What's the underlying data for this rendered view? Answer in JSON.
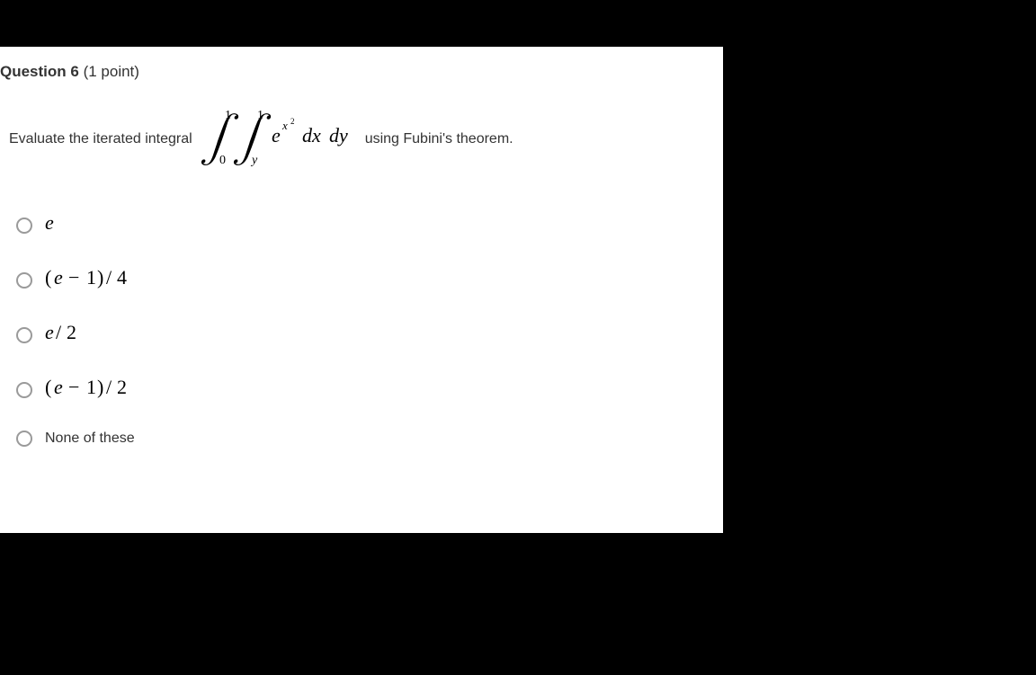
{
  "colors": {
    "page_bg": "#000000",
    "card_bg": "#ffffff",
    "text": "#333333",
    "radio_border": "#9a9a9a"
  },
  "question": {
    "label_bold": "Question 6",
    "points_suffix": " (1 point)",
    "prompt_lead": "Evaluate the iterated integral ",
    "prompt_trail": " using Fubini's theorem.",
    "integral": {
      "outer_lower": "0",
      "outer_upper": "1",
      "inner_lower": "y",
      "inner_upper": "1",
      "integrand_base": "e",
      "integrand_exp_base": "x",
      "integrand_exp_power": "2",
      "diff1": "dx",
      "diff2": "dy"
    }
  },
  "options": [
    {
      "kind": "math",
      "value": "e"
    },
    {
      "kind": "math",
      "value": "(e − 1)/4"
    },
    {
      "kind": "math",
      "value": "e/2"
    },
    {
      "kind": "math",
      "value": "(e − 1)/2"
    },
    {
      "kind": "text",
      "value": "None of these"
    }
  ]
}
